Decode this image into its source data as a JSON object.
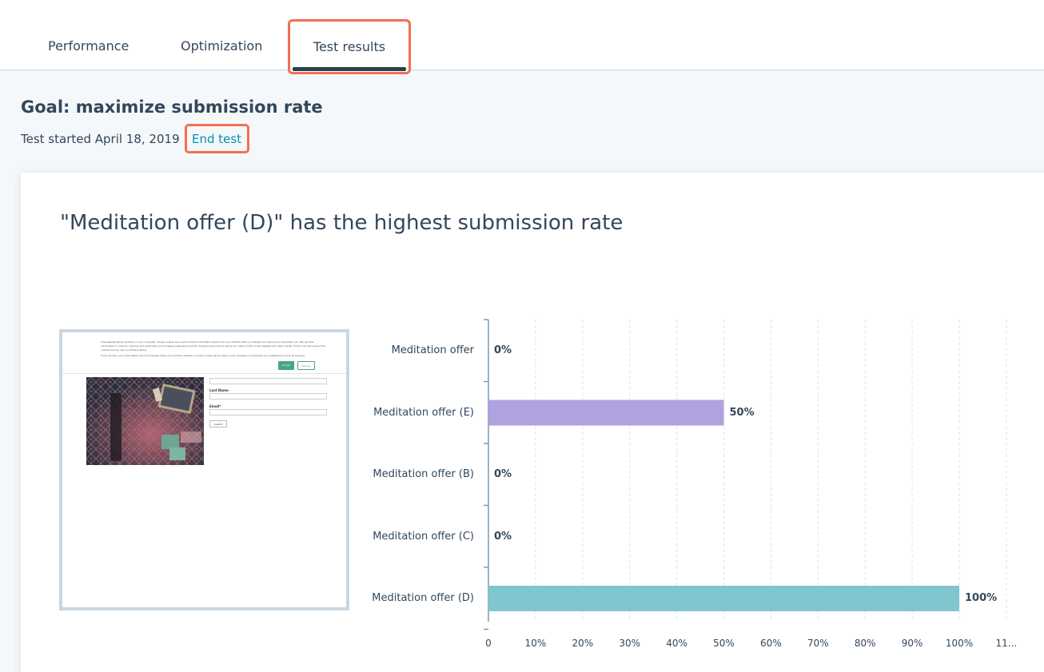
{
  "tabs": [
    {
      "label": "Performance"
    },
    {
      "label": "Optimization"
    },
    {
      "label": "Test results",
      "active": true
    }
  ],
  "goal": {
    "title": "Goal: maximize submission rate"
  },
  "test": {
    "started": "Test started April 18, 2019",
    "end_label": "End test"
  },
  "result": {
    "headline": "\"Meditation offer (D)\" has the highest submission rate"
  },
  "preview": {
    "cookie_text": [
      "This website stores cookies on your computer. These cookies are used to collect information about how you interact with our website and allow us to remember you. We use this",
      "information in order to improve and customize your browsing experience and for analytics and metrics about our visitors both on this website and other media. To find out more about the",
      "cookies we use, see our Privacy Policy.",
      "If you decline, your information won't be tracked when you visit this website. A single cookie will be used in your browser to remember your preference not to be tracked."
    ],
    "accept_label": "Accept",
    "decline_label": "Decline",
    "form": {
      "last_name_label": "Last Name",
      "email_label": "Email*",
      "submit_label": "Submit"
    }
  },
  "colors": {
    "accent": "#f2704f",
    "link": "#0091ae",
    "bar_purple": "#b0a1df",
    "bar_teal": "#80c6cf"
  },
  "chart_data": {
    "type": "bar",
    "orientation": "horizontal",
    "categories": [
      "Meditation offer",
      "Meditation offer (E)",
      "Meditation offer (B)",
      "Meditation offer (C)",
      "Meditation offer (D)"
    ],
    "values": [
      0,
      50,
      0,
      0,
      100
    ],
    "value_labels": [
      "0%",
      "50%",
      "0%",
      "0%",
      "100%"
    ],
    "bar_colors": [
      "#b0a1df",
      "#b0a1df",
      "#b0a1df",
      "#b0a1df",
      "#80c6cf"
    ],
    "x_ticks": [
      "0",
      "10%",
      "20%",
      "30%",
      "40%",
      "50%",
      "60%",
      "70%",
      "80%",
      "90%",
      "100%",
      "11..."
    ],
    "xlim": [
      0,
      110
    ],
    "grid": true
  }
}
